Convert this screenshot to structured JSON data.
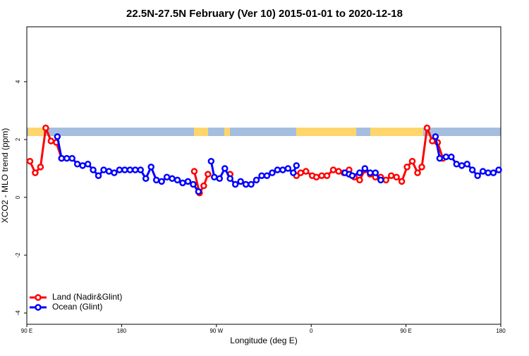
{
  "chart_data": {
    "type": "line",
    "title": "22.5N-27.5N February (Ver 10)   2015-01-01 to 2020-12-18",
    "x_label": "Longitude (deg E)",
    "y_label": "XCO2 - MLO trend (ppm)",
    "xlim": [
      90,
      540
    ],
    "ylim": [
      -4.39,
      5.9
    ],
    "xticks": [
      {
        "value": 90,
        "label": "90 E"
      },
      {
        "value": 180,
        "label": "180"
      },
      {
        "value": 270,
        "label": "90 W"
      },
      {
        "value": 360,
        "label": "0"
      },
      {
        "value": 450,
        "label": "90 E"
      },
      {
        "value": 540,
        "label": "180"
      }
    ],
    "yticks": [
      -4,
      -2,
      0,
      2,
      4
    ],
    "legend": "bottom-left",
    "series": [
      {
        "name": "Land (Nadir&Glint)",
        "color": "#ff0000",
        "x": [
          93,
          98,
          103,
          108,
          113,
          118,
          123,
          185,
          249,
          254,
          258,
          262,
          270,
          283,
          300,
          346,
          350,
          355,
          361,
          365,
          370,
          375,
          381,
          386,
          391,
          396,
          401,
          406,
          411,
          416,
          421,
          426,
          431,
          436,
          441,
          446,
          451,
          456,
          461,
          465,
          470,
          475,
          480,
          485
        ],
        "values": [
          1.25,
          0.85,
          1.05,
          2.4,
          1.95,
          1.9,
          1.35,
          null,
          0.9,
          0.15,
          0.4,
          0.8,
          null,
          0.8,
          null,
          0.75,
          0.85,
          0.9,
          0.75,
          0.7,
          0.75,
          0.75,
          0.95,
          0.9,
          0.85,
          0.95,
          0.7,
          0.6,
          0.95,
          0.8,
          0.7,
          0.7,
          0.6,
          0.75,
          0.7,
          0.55,
          1.05,
          1.25,
          0.85,
          1.05,
          2.4,
          1.95,
          1.9,
          1.35
        ]
      },
      {
        "name": "Ocean (Glint)",
        "color": "#0000ff",
        "x": [
          119,
          123,
          128,
          133,
          138,
          143,
          148,
          153,
          158,
          163,
          168,
          173,
          178,
          183,
          188,
          193,
          198,
          203,
          208,
          213,
          218,
          223,
          228,
          233,
          238,
          243,
          248,
          253,
          258,
          265,
          268,
          273,
          278,
          283,
          288,
          293,
          298,
          303,
          308,
          313,
          318,
          323,
          328,
          333,
          338,
          343,
          346,
          370,
          392,
          396,
          399,
          406,
          411,
          416,
          421,
          426,
          450,
          478,
          482,
          488,
          493,
          498,
          503,
          508,
          513,
          518,
          523,
          528,
          533,
          538
        ],
        "values": [
          2.1,
          1.35,
          1.35,
          1.35,
          1.15,
          1.1,
          1.15,
          0.95,
          0.75,
          0.95,
          0.9,
          0.85,
          0.95,
          0.95,
          0.95,
          0.95,
          0.95,
          0.65,
          1.05,
          0.6,
          0.55,
          0.7,
          0.65,
          0.6,
          0.5,
          0.55,
          0.45,
          0.2,
          null,
          1.25,
          0.7,
          0.65,
          1.0,
          0.65,
          0.45,
          0.55,
          0.45,
          0.45,
          0.6,
          0.75,
          0.75,
          0.85,
          0.95,
          0.95,
          1.0,
          0.85,
          1.1,
          null,
          0.85,
          0.8,
          0.75,
          0.85,
          1.0,
          0.85,
          0.85,
          0.6,
          null,
          2.1,
          1.35,
          1.4,
          1.4,
          1.15,
          1.1,
          1.15,
          0.95,
          0.75,
          0.9,
          0.85,
          0.85,
          0.95
        ]
      }
    ]
  }
}
